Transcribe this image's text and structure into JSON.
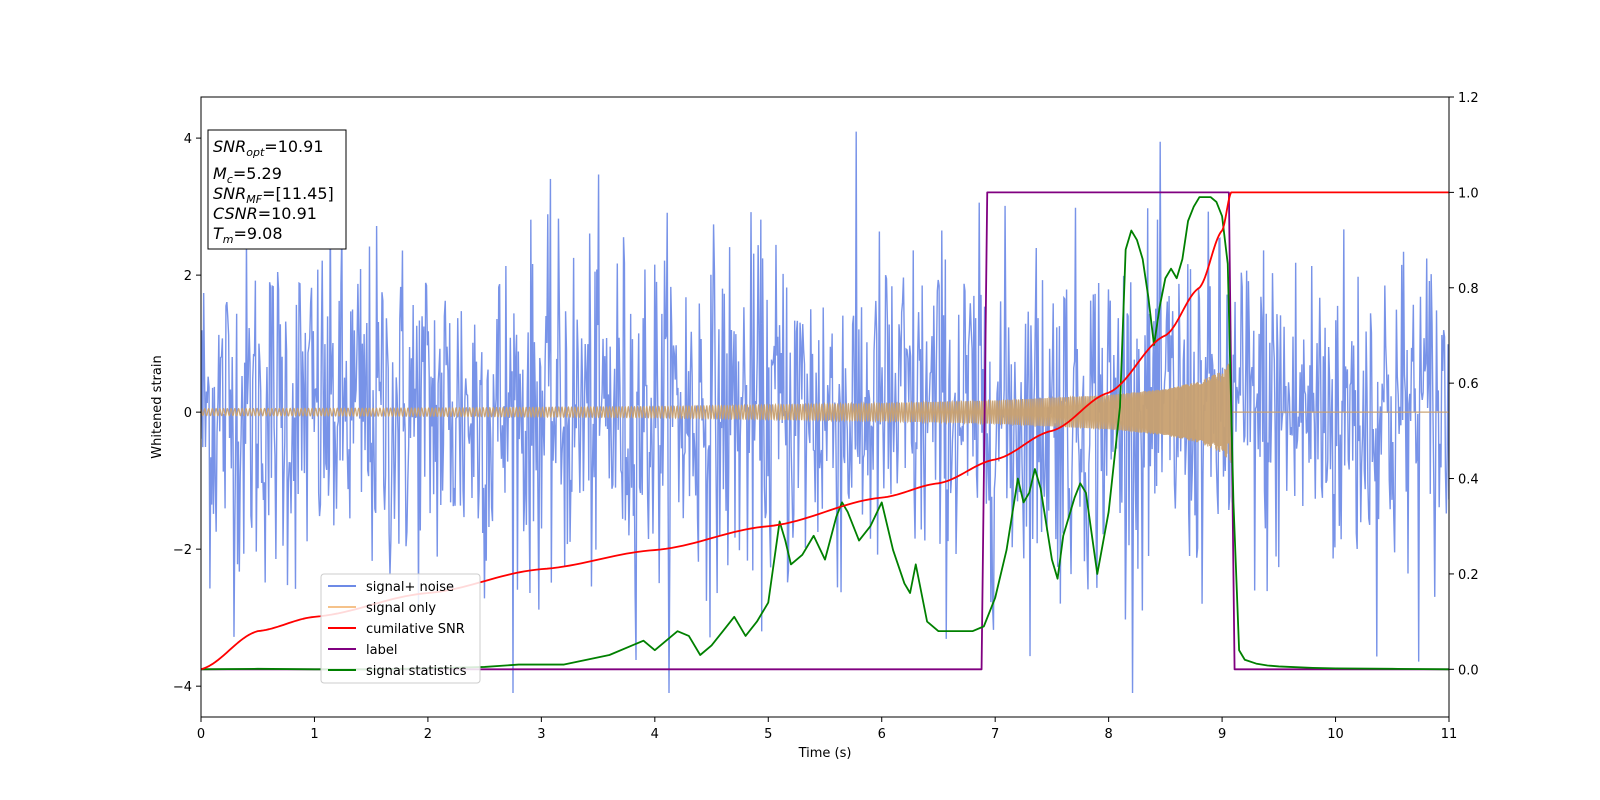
{
  "chart_data": {
    "type": "line",
    "title": "",
    "xlabel": "Time (s)",
    "ylabel_left": "Whitened strain",
    "ylabel_right": "",
    "xlim": [
      0,
      11
    ],
    "ylim_left": [
      -4.45,
      4.6
    ],
    "ylim_right": [
      -0.1,
      1.2
    ],
    "x_ticks": [
      0,
      1,
      2,
      3,
      4,
      5,
      6,
      7,
      8,
      9,
      10,
      11
    ],
    "y_left_ticks": [
      -4,
      -2,
      0,
      2,
      4
    ],
    "y_right_ticks": [
      0.0,
      0.2,
      0.4,
      0.6,
      0.8,
      1.0,
      1.2
    ],
    "y_right_tick_labels": [
      "0.0",
      "0.2",
      "0.4",
      "0.6",
      "0.8",
      "1.0",
      "1.2"
    ],
    "grid": false,
    "legend_position": "lower-left",
    "legend": [
      {
        "label": "signal+ noise",
        "color": "#6d8ae6"
      },
      {
        "label": "signal only",
        "color": "#f5c28a"
      },
      {
        "label": "cumilative SNR",
        "color": "#ff0000"
      },
      {
        "label": "label",
        "color": "#800080"
      },
      {
        "label": "signal statistics",
        "color": "#008000"
      }
    ],
    "noise": {
      "axis": "left",
      "color": "#6d8ae6",
      "amplitude_std": 1.25,
      "samples": 1400
    },
    "signal_only": {
      "axis": "left",
      "color": "#c8a070",
      "envelope": [
        [
          0,
          0.05
        ],
        [
          2,
          0.06
        ],
        [
          4,
          0.08
        ],
        [
          6,
          0.13
        ],
        [
          7,
          0.17
        ],
        [
          8,
          0.25
        ],
        [
          8.5,
          0.34
        ],
        [
          8.8,
          0.45
        ],
        [
          9.0,
          0.6
        ],
        [
          9.08,
          0.75
        ]
      ],
      "end_time": 9.08
    },
    "cumulative_snr": {
      "axis": "right",
      "color": "#ff0000",
      "x": [
        0,
        0.5,
        1,
        2,
        3,
        4,
        5,
        6,
        6.5,
        7,
        7.5,
        8,
        8.5,
        8.8,
        9.0,
        9.08,
        9.1,
        11
      ],
      "y": [
        0.0,
        0.08,
        0.11,
        0.16,
        0.21,
        0.25,
        0.3,
        0.36,
        0.39,
        0.44,
        0.5,
        0.58,
        0.7,
        0.8,
        0.92,
        1.0,
        1.0,
        1.0
      ]
    },
    "label_series": {
      "axis": "right",
      "color": "#800080",
      "x": [
        0,
        6.88,
        6.93,
        9.06,
        9.11,
        11
      ],
      "y": [
        0,
        0,
        1,
        1,
        0,
        0
      ]
    },
    "signal_statistics": {
      "axis": "right",
      "color": "#008000",
      "x": [
        0,
        0.5,
        1,
        1.5,
        2,
        2.5,
        2.8,
        3.0,
        3.2,
        3.4,
        3.6,
        3.8,
        3.9,
        4.0,
        4.1,
        4.2,
        4.3,
        4.4,
        4.5,
        4.6,
        4.7,
        4.8,
        4.9,
        5.0,
        5.1,
        5.15,
        5.2,
        5.3,
        5.4,
        5.5,
        5.6,
        5.65,
        5.7,
        5.8,
        5.9,
        6.0,
        6.1,
        6.2,
        6.25,
        6.3,
        6.4,
        6.5,
        6.6,
        6.7,
        6.8,
        6.9,
        7.0,
        7.1,
        7.2,
        7.25,
        7.3,
        7.35,
        7.4,
        7.5,
        7.55,
        7.6,
        7.7,
        7.75,
        7.8,
        7.9,
        8.0,
        8.1,
        8.15,
        8.2,
        8.25,
        8.3,
        8.35,
        8.4,
        8.45,
        8.5,
        8.55,
        8.6,
        8.65,
        8.7,
        8.75,
        8.8,
        8.85,
        8.9,
        8.95,
        9.0,
        9.05,
        9.1,
        9.15,
        9.2,
        9.3,
        9.4,
        9.5,
        9.6,
        9.8,
        10,
        10.5,
        11
      ],
      "y": [
        0.0,
        0.001,
        0.0,
        0.0,
        0.002,
        0.005,
        0.01,
        0.01,
        0.01,
        0.02,
        0.03,
        0.05,
        0.06,
        0.04,
        0.06,
        0.08,
        0.07,
        0.03,
        0.05,
        0.08,
        0.11,
        0.07,
        0.1,
        0.14,
        0.31,
        0.27,
        0.22,
        0.24,
        0.28,
        0.23,
        0.32,
        0.35,
        0.33,
        0.27,
        0.3,
        0.35,
        0.25,
        0.18,
        0.16,
        0.22,
        0.1,
        0.08,
        0.08,
        0.08,
        0.08,
        0.09,
        0.15,
        0.25,
        0.4,
        0.35,
        0.37,
        0.42,
        0.38,
        0.23,
        0.19,
        0.28,
        0.36,
        0.39,
        0.37,
        0.2,
        0.33,
        0.55,
        0.88,
        0.92,
        0.9,
        0.86,
        0.78,
        0.68,
        0.76,
        0.82,
        0.84,
        0.82,
        0.86,
        0.94,
        0.97,
        0.99,
        0.99,
        0.99,
        0.98,
        0.95,
        0.85,
        0.35,
        0.04,
        0.02,
        0.012,
        0.008,
        0.006,
        0.005,
        0.003,
        0.002,
        0.001,
        0.0
      ]
    },
    "info_box": {
      "snr_opt": "=10.91",
      "mc": "=5.29",
      "snr_mf": "=[11.45]",
      "csnr": "=10.91",
      "tm": "=9.08"
    }
  }
}
